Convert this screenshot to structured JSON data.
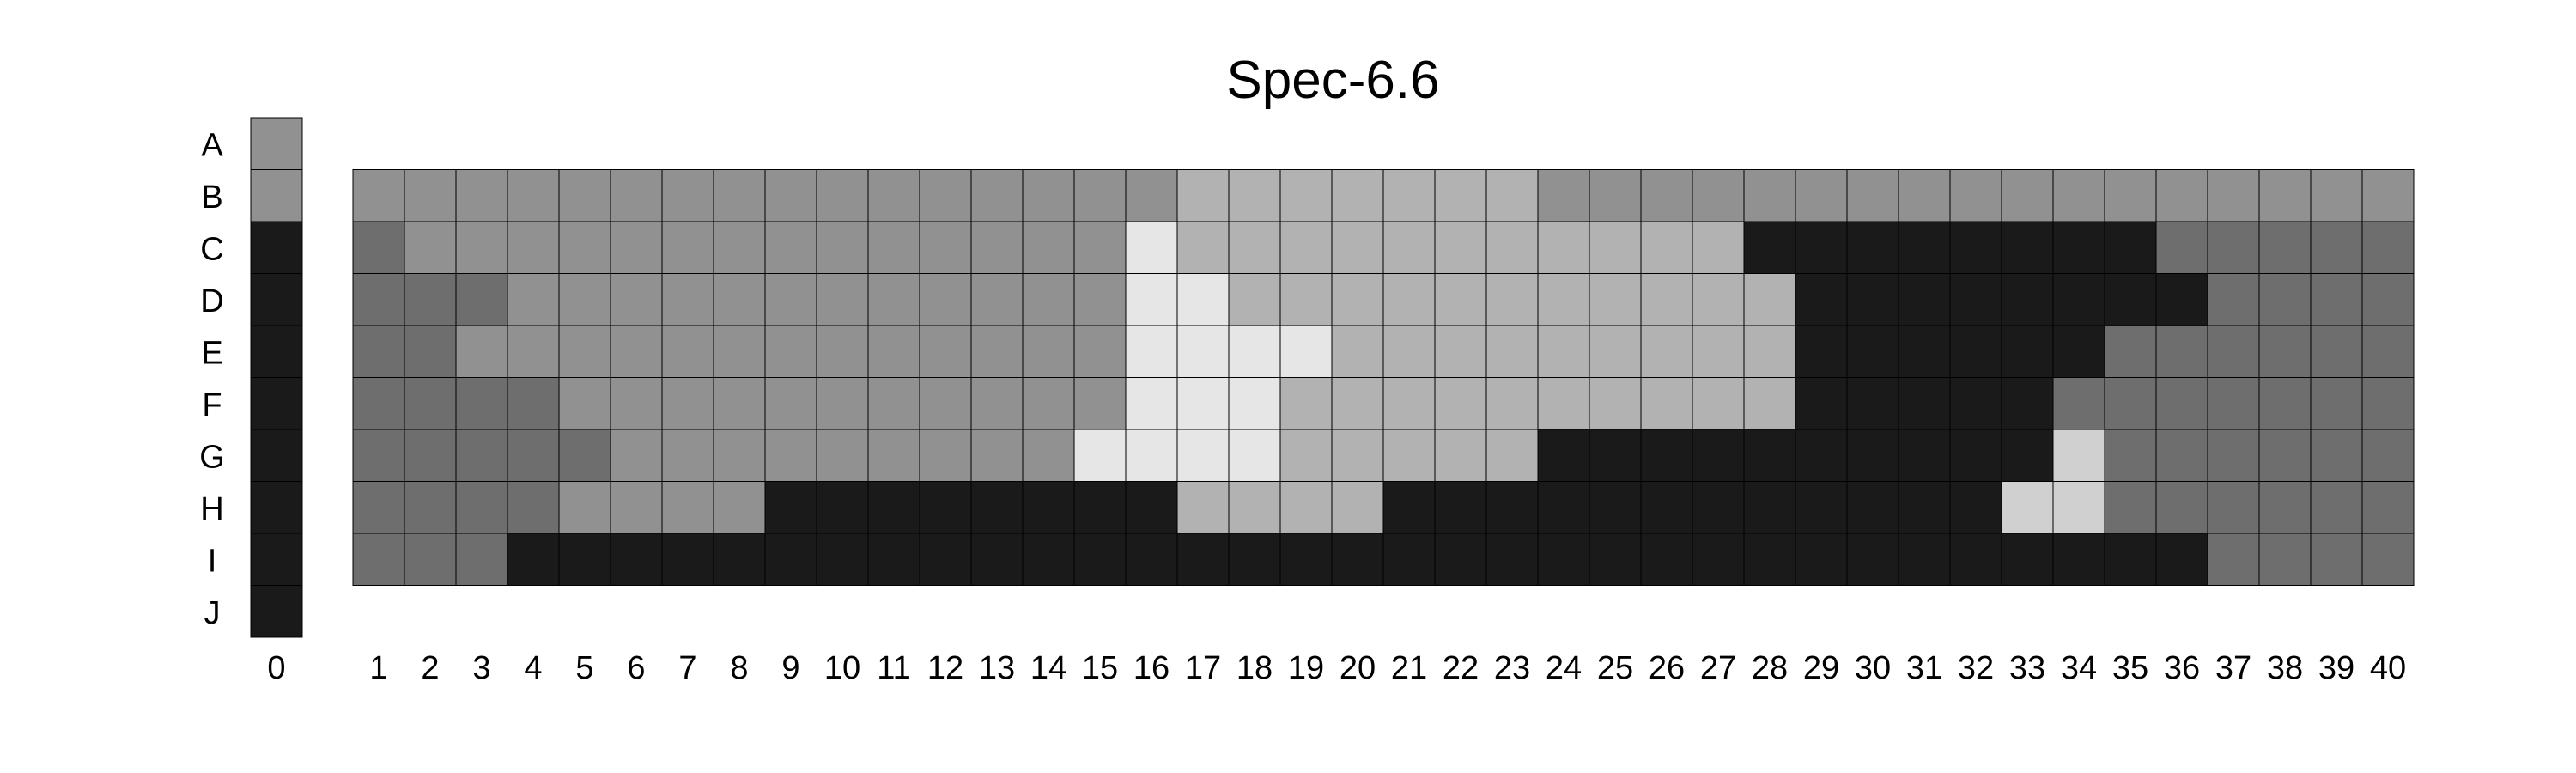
{
  "title": "Spec-6.6",
  "colors": {
    "0": "#1a1a1a",
    "1": "#6e6e6e",
    "2": "#919191",
    "3": "#b2b2b2",
    "4": "#d0d0d0",
    "5": "#e6e6e6",
    "cell_border": "#000000"
  },
  "chart_data": {
    "type": "heatmap",
    "title": "Spec-6.6",
    "x_labels": [
      "0",
      "1",
      "2",
      "3",
      "4",
      "5",
      "6",
      "7",
      "8",
      "9",
      "10",
      "11",
      "12",
      "13",
      "14",
      "15",
      "16",
      "17",
      "18",
      "19",
      "20",
      "21",
      "22",
      "23",
      "24",
      "25",
      "26",
      "27",
      "28",
      "29",
      "30",
      "31",
      "32",
      "33",
      "34",
      "35",
      "36",
      "37",
      "38",
      "39",
      "40"
    ],
    "y_labels": [
      "A",
      "B",
      "C",
      "D",
      "E",
      "F",
      "G",
      "H",
      "I",
      "J"
    ],
    "reference_column": {
      "column": "0",
      "values": [
        2,
        2,
        0,
        0,
        0,
        0,
        0,
        0,
        0,
        0
      ]
    },
    "grid_rows": [
      "B",
      "C",
      "D",
      "E",
      "F",
      "G",
      "H",
      "I"
    ],
    "values": [
      [
        2,
        2,
        2,
        2,
        2,
        2,
        2,
        2,
        2,
        2,
        2,
        2,
        2,
        2,
        2,
        2,
        3,
        3,
        3,
        3,
        3,
        3,
        3,
        2,
        2,
        2,
        2,
        2,
        2,
        2,
        2,
        2,
        2,
        2,
        2,
        2,
        2,
        2,
        2,
        2
      ],
      [
        1,
        2,
        2,
        2,
        2,
        2,
        2,
        2,
        2,
        2,
        2,
        2,
        2,
        2,
        2,
        5,
        3,
        3,
        3,
        3,
        3,
        3,
        3,
        3,
        3,
        3,
        3,
        0,
        0,
        0,
        0,
        0,
        0,
        0,
        0,
        1,
        1,
        1,
        1,
        1
      ],
      [
        1,
        1,
        1,
        2,
        2,
        2,
        2,
        2,
        2,
        2,
        2,
        2,
        2,
        2,
        2,
        5,
        5,
        3,
        3,
        3,
        3,
        3,
        3,
        3,
        3,
        3,
        3,
        3,
        0,
        0,
        0,
        0,
        0,
        0,
        0,
        0,
        1,
        1,
        1,
        1
      ],
      [
        1,
        1,
        2,
        2,
        2,
        2,
        2,
        2,
        2,
        2,
        2,
        2,
        2,
        2,
        2,
        5,
        5,
        5,
        5,
        3,
        3,
        3,
        3,
        3,
        3,
        3,
        3,
        3,
        0,
        0,
        0,
        0,
        0,
        0,
        1,
        1,
        1,
        1,
        1,
        1
      ],
      [
        1,
        1,
        1,
        1,
        2,
        2,
        2,
        2,
        2,
        2,
        2,
        2,
        2,
        2,
        2,
        5,
        5,
        5,
        3,
        3,
        3,
        3,
        3,
        3,
        3,
        3,
        3,
        3,
        0,
        0,
        0,
        0,
        0,
        1,
        1,
        1,
        1,
        1,
        1,
        1
      ],
      [
        1,
        1,
        1,
        1,
        1,
        2,
        2,
        2,
        2,
        2,
        2,
        2,
        2,
        2,
        5,
        5,
        5,
        5,
        3,
        3,
        3,
        3,
        3,
        0,
        0,
        0,
        0,
        0,
        0,
        0,
        0,
        0,
        0,
        4,
        1,
        1,
        1,
        1,
        1,
        1
      ],
      [
        1,
        1,
        1,
        1,
        2,
        2,
        2,
        2,
        0,
        0,
        0,
        0,
        0,
        0,
        0,
        0,
        3,
        3,
        3,
        3,
        0,
        0,
        0,
        0,
        0,
        0,
        0,
        0,
        0,
        0,
        0,
        0,
        4,
        4,
        1,
        1,
        1,
        1,
        1,
        1
      ],
      [
        1,
        1,
        1,
        0,
        0,
        0,
        0,
        0,
        0,
        0,
        0,
        0,
        0,
        0,
        0,
        0,
        0,
        0,
        0,
        0,
        0,
        0,
        0,
        0,
        0,
        0,
        0,
        0,
        0,
        0,
        0,
        0,
        0,
        0,
        0,
        0,
        1,
        1,
        1,
        1
      ]
    ]
  }
}
